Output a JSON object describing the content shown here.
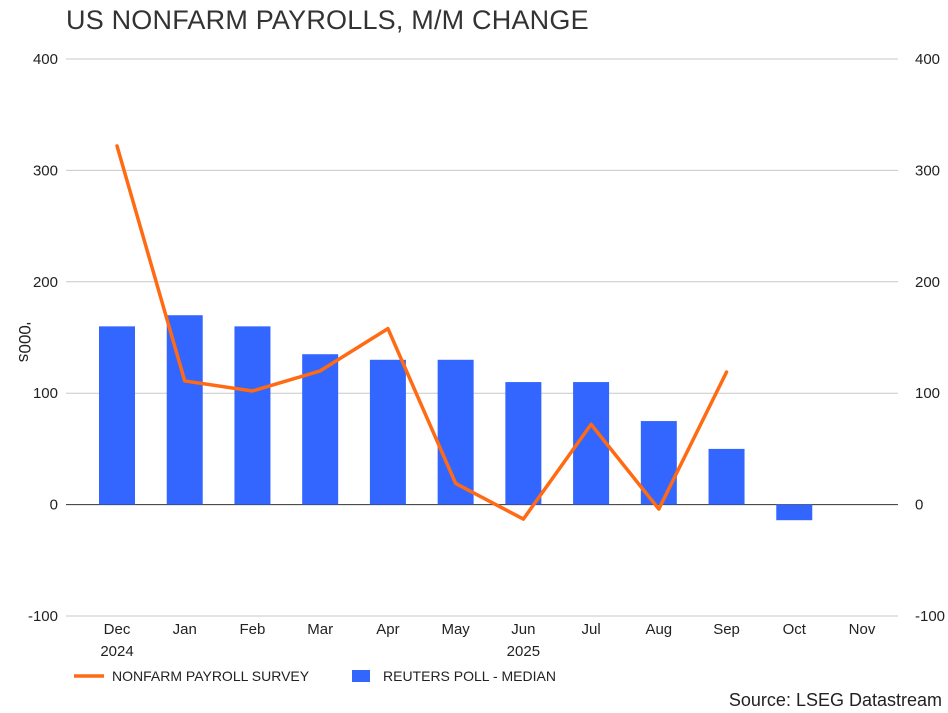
{
  "chart_data": {
    "type": "bar",
    "title": "US NONFARM PAYROLLS, M/M CHANGE",
    "ylabel": "'000s",
    "ylim": [
      -100,
      400
    ],
    "yticks": [
      -100,
      0,
      100,
      200,
      300,
      400
    ],
    "categories": [
      "Dec",
      "Jan",
      "Feb",
      "Mar",
      "Apr",
      "May",
      "Jun",
      "Jul",
      "Aug",
      "Sep",
      "Oct",
      "Nov"
    ],
    "year_labels": [
      {
        "index": 0,
        "label": "2024"
      },
      {
        "index": 6,
        "label": "2025"
      }
    ],
    "series": [
      {
        "name": "REUTERS POLL - MEDIAN",
        "type": "bar",
        "color": "#3366ff",
        "values": [
          160,
          170,
          160,
          135,
          130,
          130,
          110,
          110,
          75,
          50,
          -14,
          null
        ]
      },
      {
        "name": "NONFARM PAYROLL SURVEY",
        "type": "line",
        "color": "#ff6a13",
        "values": [
          322,
          111,
          102,
          120,
          158,
          19,
          -13,
          72,
          -4,
          119,
          null,
          null
        ]
      }
    ],
    "legend": "bottom-left",
    "grid": true
  },
  "source": "Source: LSEG Datastream"
}
